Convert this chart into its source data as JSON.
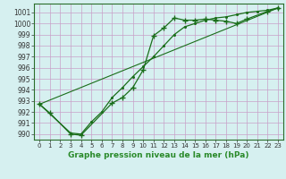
{
  "line1_x": [
    0,
    1,
    3,
    4,
    7,
    8,
    9,
    10,
    11,
    12,
    13,
    14,
    15,
    16,
    17,
    18,
    19,
    20,
    22,
    23
  ],
  "line1_y": [
    992.7,
    991.9,
    990.0,
    989.9,
    992.8,
    993.3,
    994.2,
    995.8,
    998.9,
    999.6,
    1000.5,
    1000.3,
    1000.3,
    1000.4,
    1000.3,
    1000.2,
    1000.0,
    1000.4,
    1001.1,
    1001.4
  ],
  "line2_x": [
    0,
    3,
    4,
    5,
    6,
    7,
    8,
    9,
    10,
    11,
    12,
    13,
    14,
    15,
    16,
    17,
    18,
    19,
    20,
    21,
    22,
    23
  ],
  "line2_y": [
    992.7,
    990.1,
    990.0,
    991.1,
    992.0,
    993.3,
    994.2,
    995.2,
    996.1,
    997.0,
    998.0,
    999.0,
    999.7,
    1000.0,
    1000.3,
    1000.5,
    1000.6,
    1000.8,
    1001.0,
    1001.1,
    1001.2,
    1001.4
  ],
  "line3_x": [
    0,
    23
  ],
  "line3_y": [
    992.7,
    1001.4
  ],
  "ylim": [
    989.5,
    1001.8
  ],
  "xlim": [
    -0.5,
    23.5
  ],
  "yticks": [
    990,
    991,
    992,
    993,
    994,
    995,
    996,
    997,
    998,
    999,
    1000,
    1001
  ],
  "xticks": [
    0,
    1,
    2,
    3,
    4,
    5,
    6,
    7,
    8,
    9,
    10,
    11,
    12,
    13,
    14,
    15,
    16,
    17,
    18,
    19,
    20,
    21,
    22,
    23
  ],
  "xlabel": "Graphe pression niveau de la mer (hPa)",
  "bg_color": "#d6f0f0",
  "grid_color": "#c8a0c8",
  "line_color": "#1a6e1a",
  "axis_color": "#2a8a2a",
  "label_fontsize": 6.5,
  "tick_fontsize": 5.5
}
